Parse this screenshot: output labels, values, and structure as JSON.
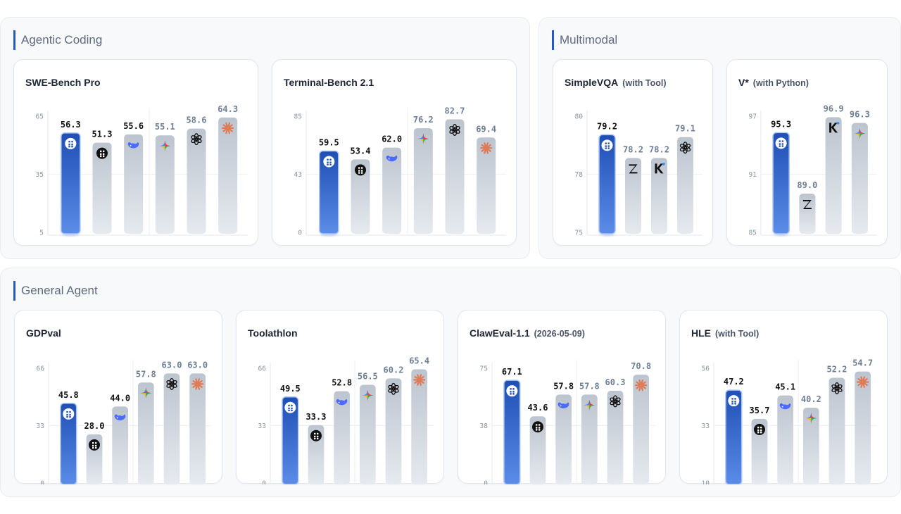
{
  "sections": [
    {
      "title": "Agentic Coding"
    },
    {
      "title": "Multimodal"
    },
    {
      "title": "General Agent"
    }
  ],
  "colors": {
    "highlight_top": "#1f4fb4",
    "highlight_bottom": "#5b8ce8",
    "bar_top": "#bcc4cf",
    "bar_bottom": "#e6eaef",
    "value_dark": "#111111",
    "value_muted": "#6e7f95"
  },
  "chart_data": [
    {
      "type": "bar",
      "title": "SWE-Bench Pro",
      "subtitle": "",
      "yticks": [
        "65",
        "35",
        "5"
      ],
      "ylim": [
        5,
        65
      ],
      "bars": [
        {
          "value": 56.3,
          "label": "56.3",
          "icon": "highlight-model-icon",
          "highlight": true
        },
        {
          "value": 51.3,
          "label": "51.3",
          "icon": "grid-logo-icon"
        },
        {
          "value": 55.6,
          "label": "55.6",
          "icon": "whale-icon"
        },
        {
          "value": 55.1,
          "label": "55.1",
          "icon": "gemini-star-icon"
        },
        {
          "value": 58.6,
          "label": "58.6",
          "icon": "openai-knot-icon"
        },
        {
          "value": 64.3,
          "label": "64.3",
          "icon": "claude-burst-icon"
        }
      ],
      "divider_after": 3
    },
    {
      "type": "bar",
      "title": "Terminal-Bench 2.1",
      "subtitle": "",
      "yticks": [
        "85",
        "43",
        "0"
      ],
      "ylim": [
        0,
        85
      ],
      "bars": [
        {
          "value": 59.5,
          "label": "59.5",
          "icon": "highlight-model-icon",
          "highlight": true
        },
        {
          "value": 53.4,
          "label": "53.4",
          "icon": "grid-logo-icon"
        },
        {
          "value": 62.0,
          "label": "62.0",
          "icon": "whale-icon"
        },
        {
          "value": 76.2,
          "label": "76.2",
          "icon": "gemini-star-icon"
        },
        {
          "value": 82.7,
          "label": "82.7",
          "icon": "openai-knot-icon"
        },
        {
          "value": 69.4,
          "label": "69.4",
          "icon": "claude-burst-icon"
        }
      ],
      "divider_after": 3
    },
    {
      "type": "bar",
      "title": "SimpleVQA",
      "subtitle": "(with Tool)",
      "yticks": [
        "80",
        "78",
        "75"
      ],
      "ylim": [
        75,
        80
      ],
      "bars": [
        {
          "value": 79.2,
          "label": "79.2",
          "icon": "highlight-model-icon",
          "highlight": true
        },
        {
          "value": 78.2,
          "label": "78.2",
          "icon": "z-logo-icon"
        },
        {
          "value": 78.2,
          "label": "78.2",
          "icon": "k-logo-icon"
        },
        {
          "value": 79.1,
          "label": "79.1",
          "icon": "openai-knot-icon"
        }
      ],
      "divider_after": 0
    },
    {
      "type": "bar",
      "title": "V*",
      "subtitle": "(with Python)",
      "yticks": [
        "97",
        "91",
        "85"
      ],
      "ylim": [
        85,
        97
      ],
      "bars": [
        {
          "value": 95.3,
          "label": "95.3",
          "icon": "highlight-model-icon",
          "highlight": true
        },
        {
          "value": 89.0,
          "label": "89.0",
          "icon": "z-logo-icon"
        },
        {
          "value": 96.9,
          "label": "96.9",
          "icon": "k-logo-icon"
        },
        {
          "value": 96.3,
          "label": "96.3",
          "icon": "gemini-star-icon"
        }
      ],
      "divider_after": 0
    },
    {
      "type": "bar",
      "title": "GDPval",
      "subtitle": "",
      "yticks": [
        "66",
        "33",
        "0"
      ],
      "ylim": [
        0,
        66
      ],
      "bars": [
        {
          "value": 45.8,
          "label": "45.8",
          "icon": "highlight-model-icon",
          "highlight": true
        },
        {
          "value": 28.0,
          "label": "28.0",
          "icon": "grid-logo-icon"
        },
        {
          "value": 44.0,
          "label": "44.0",
          "icon": "whale-icon"
        },
        {
          "value": 57.8,
          "label": "57.8",
          "icon": "gemini-star-icon"
        },
        {
          "value": 63.0,
          "label": "63.0",
          "icon": "openai-knot-icon"
        },
        {
          "value": 63.0,
          "label": "63.0",
          "icon": "claude-burst-icon"
        }
      ],
      "divider_after": 3
    },
    {
      "type": "bar",
      "title": "Toolathlon",
      "subtitle": "",
      "yticks": [
        "66",
        "33",
        "0"
      ],
      "ylim": [
        0,
        66
      ],
      "bars": [
        {
          "value": 49.5,
          "label": "49.5",
          "icon": "highlight-model-icon",
          "highlight": true
        },
        {
          "value": 33.3,
          "label": "33.3",
          "icon": "grid-logo-icon"
        },
        {
          "value": 52.8,
          "label": "52.8",
          "icon": "whale-icon"
        },
        {
          "value": 56.5,
          "label": "56.5",
          "icon": "gemini-star-icon"
        },
        {
          "value": 60.2,
          "label": "60.2",
          "icon": "openai-knot-icon"
        },
        {
          "value": 65.4,
          "label": "65.4",
          "icon": "claude-burst-icon"
        }
      ],
      "divider_after": 3
    },
    {
      "type": "bar",
      "title": "ClawEval-1.1",
      "subtitle": "(2026-05-09)",
      "yticks": [
        "75",
        "38",
        "0"
      ],
      "ylim": [
        0,
        75
      ],
      "bars": [
        {
          "value": 67.1,
          "label": "67.1",
          "icon": "highlight-model-icon",
          "highlight": true
        },
        {
          "value": 43.6,
          "label": "43.6",
          "icon": "grid-logo-icon"
        },
        {
          "value": 57.8,
          "label": "57.8",
          "icon": "whale-icon"
        },
        {
          "value": 57.8,
          "label": "57.8",
          "icon": "gemini-star-icon"
        },
        {
          "value": 60.3,
          "label": "60.3",
          "icon": "openai-knot-icon"
        },
        {
          "value": 70.8,
          "label": "70.8",
          "icon": "claude-burst-icon"
        }
      ],
      "divider_after": 3
    },
    {
      "type": "bar",
      "title": "HLE",
      "subtitle": "(with Tool)",
      "yticks": [
        "56",
        "33",
        "10"
      ],
      "ylim": [
        10,
        56
      ],
      "bars": [
        {
          "value": 47.2,
          "label": "47.2",
          "icon": "highlight-model-icon",
          "highlight": true
        },
        {
          "value": 35.7,
          "label": "35.7",
          "icon": "grid-logo-icon"
        },
        {
          "value": 45.1,
          "label": "45.1",
          "icon": "whale-icon"
        },
        {
          "value": 40.2,
          "label": "40.2",
          "icon": "gemini-star-icon"
        },
        {
          "value": 52.2,
          "label": "52.2",
          "icon": "openai-knot-icon"
        },
        {
          "value": 54.7,
          "label": "54.7",
          "icon": "claude-burst-icon"
        }
      ],
      "divider_after": 3
    }
  ]
}
